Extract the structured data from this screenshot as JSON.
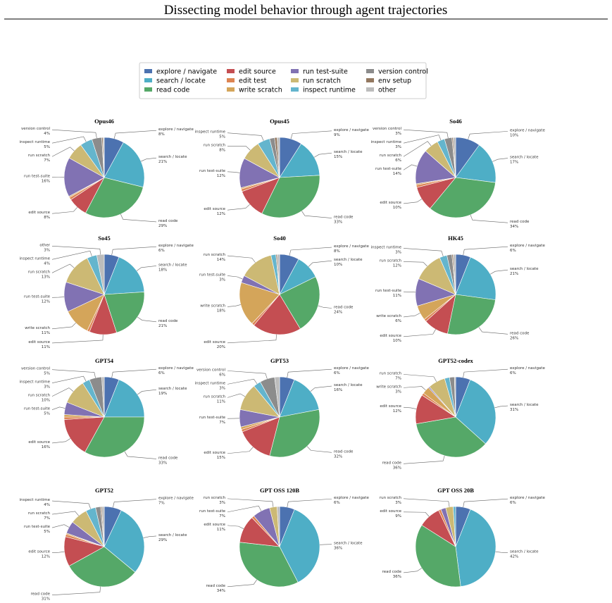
{
  "title": "Dissecting model behavior through agent trajectories",
  "legend": {
    "labels": [
      "explore / navigate",
      "search / locate",
      "read code",
      "edit source",
      "edit test",
      "write scratch",
      "run test-suite",
      "run scratch",
      "inspect runtime",
      "version control",
      "env setup",
      "other"
    ],
    "colors": [
      "#4c72b0",
      "#4eaec6",
      "#55a868",
      "#c44e52",
      "#dd8452",
      "#d4a55a",
      "#8172b3",
      "#ccb974",
      "#64b5cd",
      "#8c8c8c",
      "#937860",
      "#bcbcbc"
    ]
  },
  "chart_data": [
    {
      "type": "pie",
      "title": "Opus46",
      "categories": [
        "explore / navigate",
        "search / locate",
        "read code",
        "edit source",
        null,
        null,
        "run test-suite",
        "run scratch",
        "inspect runtime",
        "version control",
        null,
        null
      ],
      "values": [
        8,
        21,
        29,
        8,
        1,
        0.5,
        16,
        7,
        5,
        4,
        0.5,
        0.5
      ],
      "value_labels": [
        "8%",
        "21%",
        "29%",
        "8%",
        null,
        null,
        "16%",
        "7%",
        "5%",
        "4%",
        null,
        null
      ]
    },
    {
      "type": "pie",
      "title": "Opus45",
      "categories": [
        "explore / navigate",
        "search / locate",
        "read code",
        "edit source",
        null,
        null,
        "run test-suite",
        "run scratch",
        "inspect runtime",
        null,
        null,
        null
      ],
      "values": [
        9,
        15,
        33,
        12,
        1,
        0.5,
        12,
        8,
        5,
        2,
        1,
        1
      ],
      "value_labels": [
        "9%",
        "15%",
        "33%",
        "12%",
        null,
        null,
        "12%",
        "8%",
        "5%",
        null,
        null,
        null
      ]
    },
    {
      "type": "pie",
      "title": "So46",
      "categories": [
        "explore / navigate",
        "search / locate",
        "read code",
        "edit source",
        null,
        null,
        "run test-suite",
        "run scratch",
        "inspect runtime",
        "version control",
        null,
        null
      ],
      "values": [
        10,
        17,
        34,
        10,
        1,
        0.5,
        14,
        6,
        3,
        3,
        0.5,
        1
      ],
      "value_labels": [
        "10%",
        "17%",
        "34%",
        "10%",
        null,
        null,
        "14%",
        "6%",
        "3%",
        "3%",
        null,
        null
      ]
    },
    {
      "type": "pie",
      "title": "So45",
      "categories": [
        "explore / navigate",
        "search / locate",
        "read code",
        "edit source",
        null,
        "write scratch",
        "run test-suite",
        "run scratch",
        "inspect runtime",
        null,
        null,
        "other"
      ],
      "values": [
        6,
        18,
        21,
        11,
        1,
        11,
        12,
        13,
        4,
        0,
        0,
        3
      ],
      "value_labels": [
        "6%",
        "18%",
        "21%",
        "11%",
        null,
        "11%",
        "12%",
        "13%",
        "4%",
        null,
        null,
        "3%"
      ]
    },
    {
      "type": "pie",
      "title": "So40",
      "categories": [
        "explore / navigate",
        "search / locate",
        "read code",
        "edit source",
        null,
        "write scratch",
        "run test-suite",
        "run scratch",
        null,
        null,
        null,
        null
      ],
      "values": [
        8,
        10,
        24,
        20,
        1,
        18,
        3,
        14,
        2,
        0,
        0.5,
        1
      ],
      "value_labels": [
        "8%",
        "10%",
        "24%",
        "20%",
        null,
        "18%",
        "3%",
        "14%",
        null,
        null,
        null,
        null
      ]
    },
    {
      "type": "pie",
      "title": "HK45",
      "categories": [
        "explore / navigate",
        "search / locate",
        "read code",
        "edit source",
        null,
        "write scratch",
        "run test-suite",
        "run scratch",
        "inspect runtime",
        null,
        null,
        null
      ],
      "values": [
        6,
        21,
        26,
        10,
        1,
        6,
        11,
        12,
        3,
        2,
        0.5,
        1
      ],
      "value_labels": [
        "6%",
        "21%",
        "26%",
        "10%",
        null,
        "6%",
        "11%",
        "12%",
        "3%",
        null,
        null,
        null
      ]
    },
    {
      "type": "pie",
      "title": "GPT54",
      "categories": [
        "explore / navigate",
        "search / locate",
        "read code",
        "edit source",
        null,
        null,
        "run test-suite",
        "run scratch",
        "inspect runtime",
        "version control",
        null,
        null
      ],
      "values": [
        6,
        19,
        33,
        16,
        1,
        1,
        5,
        10,
        3,
        5,
        0,
        1
      ],
      "value_labels": [
        "6%",
        "19%",
        "33%",
        "16%",
        null,
        null,
        "5%",
        "10%",
        "3%",
        "5%",
        null,
        null
      ]
    },
    {
      "type": "pie",
      "title": "GPT53",
      "categories": [
        "explore / navigate",
        "search / locate",
        "read code",
        "edit source",
        null,
        null,
        "run test-suite",
        "run scratch",
        "inspect runtime",
        "version control",
        null,
        null
      ],
      "values": [
        6,
        16,
        32,
        15,
        1,
        1,
        7,
        11,
        3,
        6,
        0,
        2
      ],
      "value_labels": [
        "6%",
        "16%",
        "32%",
        "15%",
        null,
        null,
        "7%",
        "11%",
        "3%",
        "6%",
        null,
        null
      ]
    },
    {
      "type": "pie",
      "title": "GPT52-codex",
      "categories": [
        "explore / navigate",
        "search / locate",
        "read code",
        "edit source",
        null,
        "write scratch",
        null,
        "run scratch",
        null,
        null,
        null,
        null
      ],
      "values": [
        6,
        31,
        36,
        12,
        1,
        3,
        0.5,
        7,
        2,
        2,
        0,
        0.5
      ],
      "value_labels": [
        "6%",
        "31%",
        "36%",
        "12%",
        null,
        "3%",
        null,
        "7%",
        null,
        null,
        null,
        null
      ]
    },
    {
      "type": "pie",
      "title": "GPT52",
      "categories": [
        "explore / navigate",
        "search / locate",
        "read code",
        "edit source",
        null,
        null,
        "run test-suite",
        "run scratch",
        "inspect runtime",
        null,
        null,
        null
      ],
      "values": [
        7,
        29,
        31,
        12,
        1,
        0.5,
        5,
        7,
        4,
        2,
        0.5,
        1
      ],
      "value_labels": [
        "7%",
        "29%",
        "31%",
        "12%",
        null,
        null,
        "5%",
        "7%",
        "4%",
        null,
        null,
        null
      ]
    },
    {
      "type": "pie",
      "title": "GPT OSS 120B",
      "categories": [
        "explore / navigate",
        "search / locate",
        "read code",
        "edit source",
        null,
        null,
        "run test-suite",
        "run scratch",
        null,
        null,
        null,
        null
      ],
      "values": [
        6,
        36,
        34,
        11,
        1,
        0,
        7,
        3,
        0,
        0,
        0,
        1
      ],
      "value_labels": [
        "6%",
        "36%",
        "34%",
        "11%",
        null,
        null,
        "7%",
        "3%",
        null,
        null,
        null,
        null
      ]
    },
    {
      "type": "pie",
      "title": "GPT OSS 20B",
      "categories": [
        "explore / navigate",
        "search / locate",
        "read code",
        "edit source",
        null,
        null,
        null,
        "run scratch",
        null,
        null,
        null,
        null
      ],
      "values": [
        6,
        42,
        36,
        9,
        1,
        0,
        2,
        3,
        1,
        0,
        0,
        0
      ],
      "value_labels": [
        "6%",
        "42%",
        "36%",
        "9%",
        null,
        null,
        null,
        "3%",
        null,
        null,
        null,
        null
      ]
    }
  ]
}
